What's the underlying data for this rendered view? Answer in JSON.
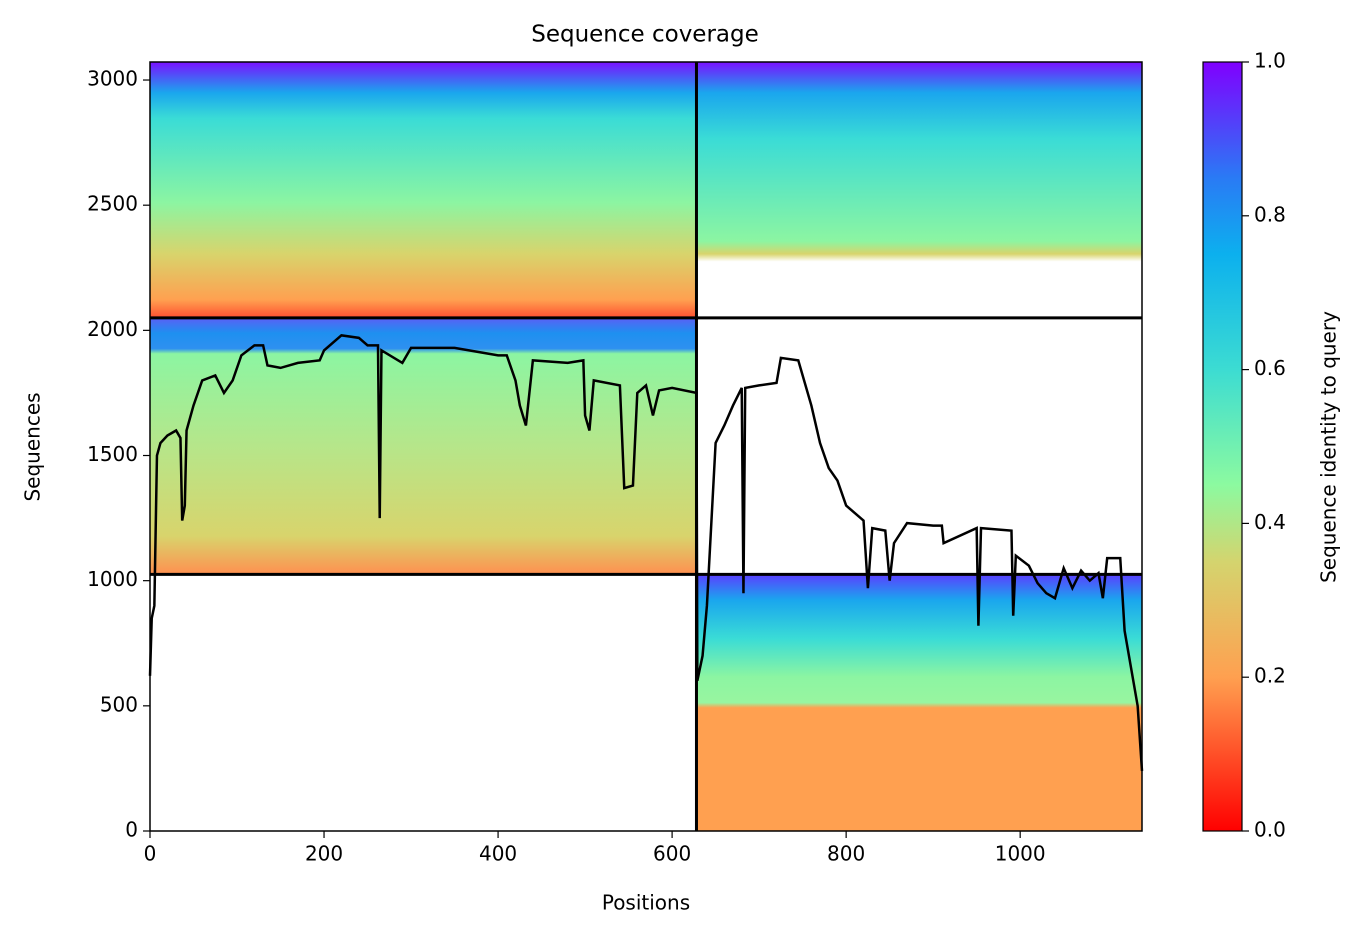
{
  "chart_data": {
    "type": "line",
    "title": "Sequence coverage",
    "xlabel": "Positions",
    "ylabel": "Sequences",
    "xlim": [
      0,
      1140
    ],
    "ylim": [
      0,
      3072
    ],
    "xticks": [
      0,
      200,
      400,
      600,
      800,
      1000
    ],
    "yticks": [
      0,
      500,
      1000,
      1500,
      2000,
      2500,
      3000
    ],
    "blocks": [
      {
        "x": [
          0,
          628
        ],
        "y": [
          2050,
          3072
        ]
      },
      {
        "x": [
          628,
          1140
        ],
        "y": [
          2050,
          3072
        ]
      },
      {
        "x": [
          0,
          628
        ],
        "y": [
          1025,
          2050
        ]
      },
      {
        "x": [
          628,
          1140
        ],
        "y": [
          0,
          1025
        ]
      }
    ],
    "dividers": {
      "x": [
        628
      ],
      "y": [
        1025,
        2050
      ]
    },
    "color": "#000000",
    "x": [
      0,
      2,
      5,
      8,
      12,
      20,
      30,
      35,
      37,
      40,
      42,
      50,
      60,
      75,
      85,
      95,
      105,
      120,
      130,
      135,
      150,
      170,
      195,
      200,
      220,
      240,
      250,
      262,
      264,
      266,
      290,
      300,
      350,
      400,
      410,
      420,
      425,
      432,
      440,
      480,
      498,
      500,
      505,
      510,
      540,
      545,
      555,
      560,
      570,
      578,
      585,
      600,
      628,
      629,
      635,
      640,
      650,
      660,
      670,
      680,
      682,
      684,
      700,
      720,
      725,
      745,
      760,
      770,
      780,
      790,
      800,
      820,
      825,
      830,
      845,
      850,
      855,
      870,
      900,
      910,
      912,
      950,
      952,
      955,
      990,
      992,
      995,
      1010,
      1020,
      1030,
      1040,
      1050,
      1060,
      1070,
      1080,
      1090,
      1095,
      1100,
      1115,
      1120,
      1130,
      1135,
      1140
    ],
    "values": [
      620,
      850,
      900,
      1500,
      1550,
      1580,
      1600,
      1570,
      1240,
      1300,
      1600,
      1700,
      1800,
      1820,
      1750,
      1800,
      1900,
      1940,
      1940,
      1860,
      1850,
      1870,
      1880,
      1920,
      1980,
      1970,
      1940,
      1940,
      1250,
      1920,
      1870,
      1930,
      1930,
      1900,
      1900,
      1800,
      1700,
      1620,
      1880,
      1870,
      1880,
      1660,
      1600,
      1800,
      1780,
      1370,
      1380,
      1750,
      1780,
      1660,
      1760,
      1770,
      1750,
      600,
      700,
      900,
      1550,
      1620,
      1700,
      1770,
      950,
      1770,
      1780,
      1790,
      1890,
      1880,
      1700,
      1550,
      1450,
      1400,
      1300,
      1240,
      970,
      1210,
      1200,
      1000,
      1150,
      1230,
      1220,
      1220,
      1150,
      1210,
      820,
      1210,
      1200,
      860,
      1100,
      1060,
      990,
      950,
      930,
      1050,
      970,
      1040,
      1000,
      1030,
      930,
      1090,
      1090,
      800,
      600,
      500,
      240
    ],
    "colorbar": {
      "label": "Sequence identity to query",
      "lim": [
        0,
        1
      ],
      "ticks": [
        {
          "value": 0,
          "label": "0.0"
        },
        {
          "value": 0.2,
          "label": "0.2"
        },
        {
          "value": 0.4,
          "label": "0.4"
        },
        {
          "value": 0.6,
          "label": "0.6"
        },
        {
          "value": 0.8,
          "label": "0.8"
        },
        {
          "value": 1,
          "label": "1.0"
        }
      ]
    }
  }
}
